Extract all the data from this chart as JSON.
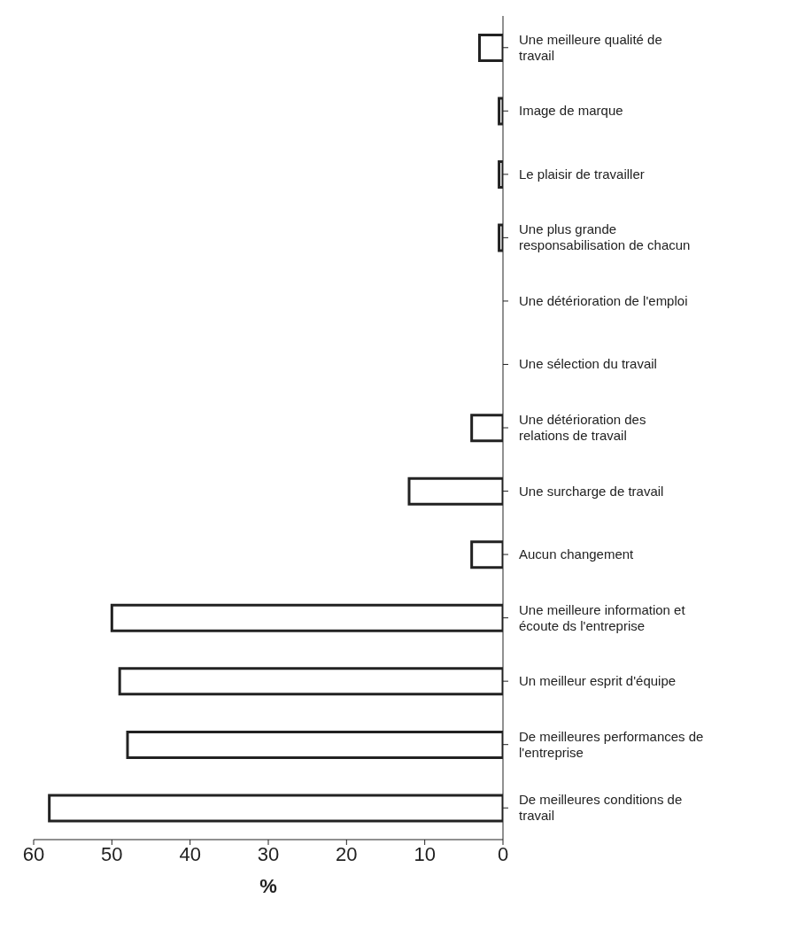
{
  "chart_data": {
    "type": "bar",
    "orientation": "horizontal",
    "xlabel": "%",
    "categories": [
      "Une meilleure qualité de travail",
      "Image de marque",
      "Le plaisir de travailler",
      "Une plus grande responsabilisation de chacun",
      "Une détérioration de l'emploi",
      "Une sélection du travail",
      "Une détérioration des relations de travail",
      "Une surcharge de travail",
      "Aucun changement",
      "Une meilleure information et écoute ds l'entreprise",
      "Un meilleur esprit d'équipe",
      "De meilleures performances de l'entreprise",
      "De meilleures conditions de travail"
    ],
    "values": [
      3,
      0.5,
      0.5,
      0.5,
      0,
      0,
      4,
      12,
      4,
      50,
      49,
      48,
      58
    ],
    "color": "#ffffff",
    "xlim": [
      60,
      0
    ],
    "xticks": [
      60,
      50,
      40,
      30,
      20,
      10,
      0
    ],
    "grid": false
  }
}
